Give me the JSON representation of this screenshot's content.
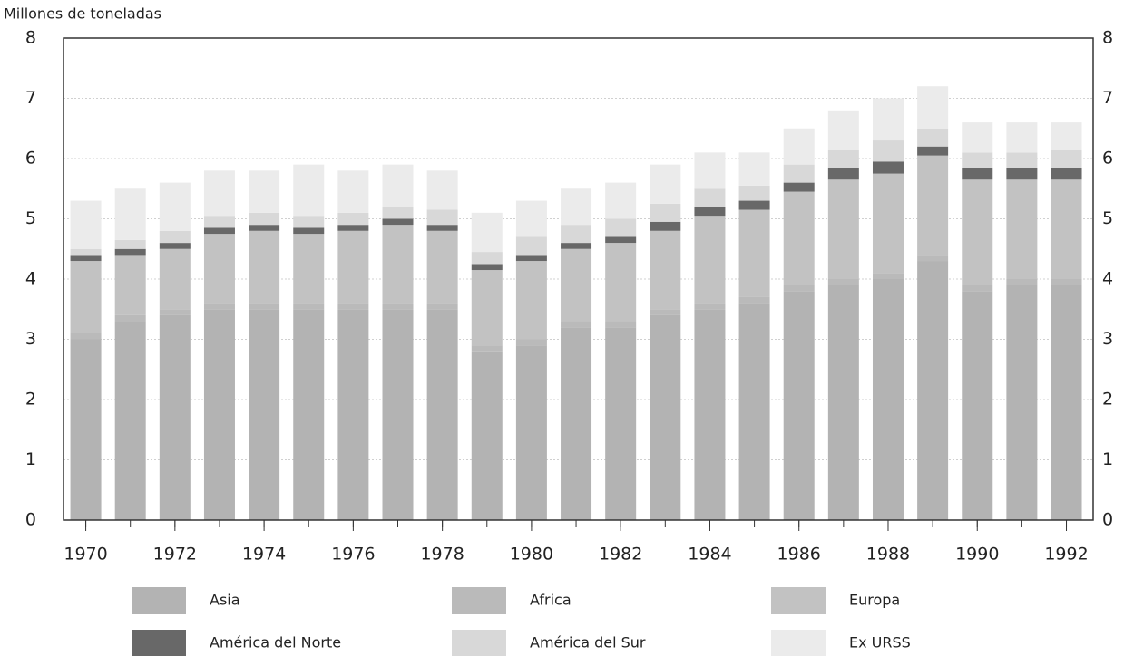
{
  "chart_data": {
    "type": "stacked_bar",
    "ylabel": "Millones de toneladas",
    "x": [
      1970,
      1971,
      1972,
      1973,
      1974,
      1975,
      1976,
      1977,
      1978,
      1979,
      1980,
      1981,
      1982,
      1983,
      1984,
      1985,
      1986,
      1987,
      1988,
      1989,
      1990,
      1991,
      1992
    ],
    "xlim": [
      1969.5,
      1992.6
    ],
    "xticks": [
      1970,
      1972,
      1974,
      1976,
      1978,
      1980,
      1982,
      1984,
      1986,
      1988,
      1990,
      1992
    ],
    "ylim": [
      0,
      8
    ],
    "yticks": [
      0,
      1,
      2,
      3,
      4,
      5,
      6,
      7,
      8
    ],
    "grid": true,
    "series": [
      {
        "name": "Asia",
        "color": "#b3b3b3",
        "values": [
          3.0,
          3.3,
          3.4,
          3.5,
          3.5,
          3.5,
          3.5,
          3.5,
          3.5,
          2.8,
          2.9,
          3.2,
          3.2,
          3.4,
          3.5,
          3.6,
          3.8,
          3.9,
          4.0,
          4.3,
          3.8,
          3.9,
          3.9
        ]
      },
      {
        "name": "Africa",
        "color": "#bababa",
        "values": [
          0.1,
          0.1,
          0.1,
          0.1,
          0.1,
          0.1,
          0.1,
          0.1,
          0.1,
          0.1,
          0.1,
          0.1,
          0.1,
          0.1,
          0.1,
          0.1,
          0.1,
          0.1,
          0.1,
          0.1,
          0.1,
          0.1,
          0.1
        ]
      },
      {
        "name": "Europa",
        "color": "#c2c2c2",
        "values": [
          1.2,
          1.0,
          1.0,
          1.15,
          1.2,
          1.15,
          1.2,
          1.3,
          1.2,
          1.25,
          1.3,
          1.2,
          1.3,
          1.3,
          1.45,
          1.45,
          1.55,
          1.65,
          1.65,
          1.65,
          1.75,
          1.65,
          1.65
        ]
      },
      {
        "name": "América del Norte",
        "color": "#686868",
        "values": [
          0.1,
          0.1,
          0.1,
          0.1,
          0.1,
          0.1,
          0.1,
          0.1,
          0.1,
          0.1,
          0.1,
          0.1,
          0.1,
          0.15,
          0.15,
          0.15,
          0.15,
          0.2,
          0.2,
          0.15,
          0.2,
          0.2,
          0.2
        ]
      },
      {
        "name": "América del Sur",
        "color": "#d8d8d8",
        "values": [
          0.1,
          0.15,
          0.2,
          0.2,
          0.2,
          0.2,
          0.2,
          0.2,
          0.25,
          0.2,
          0.3,
          0.3,
          0.3,
          0.3,
          0.3,
          0.25,
          0.3,
          0.3,
          0.35,
          0.3,
          0.25,
          0.25,
          0.3
        ]
      },
      {
        "name": "Ex URSS",
        "color": "#ebebeb",
        "values": [
          0.8,
          0.85,
          0.8,
          0.75,
          0.7,
          0.85,
          0.7,
          0.7,
          0.65,
          0.65,
          0.6,
          0.6,
          0.6,
          0.65,
          0.6,
          0.55,
          0.6,
          0.65,
          0.7,
          0.7,
          0.5,
          0.5,
          0.45
        ]
      }
    ]
  }
}
